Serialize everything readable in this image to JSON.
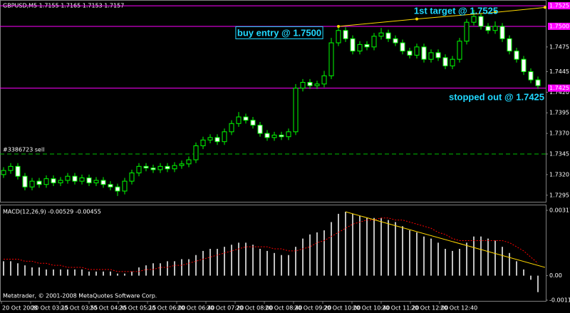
{
  "chart_data": [
    {
      "type": "candlestick",
      "title": "GBPUSD,M5  1.7155 1.7165 1.7153 1.7157",
      "open": [
        1.732,
        1.7325,
        1.733,
        1.7318,
        1.7305,
        1.7312,
        1.7308,
        1.7315,
        1.731,
        1.7313,
        1.7318,
        1.7312,
        1.7316,
        1.731,
        1.7313,
        1.7308,
        1.7305,
        1.73,
        1.7312,
        1.7322,
        1.733,
        1.7328,
        1.7326,
        1.733,
        1.7327,
        1.7331,
        1.7333,
        1.7338,
        1.7355,
        1.7362,
        1.7365,
        1.736,
        1.7372,
        1.7382,
        1.739,
        1.7386,
        1.738,
        1.737,
        1.7365,
        1.7368,
        1.7366,
        1.7372,
        1.7425,
        1.7432,
        1.7428,
        1.743,
        1.744,
        1.748,
        1.7495,
        1.7485,
        1.747,
        1.7478,
        1.7475,
        1.7488,
        1.7492,
        1.7485,
        1.748,
        1.747,
        1.7465,
        1.7475,
        1.746,
        1.7468,
        1.7462,
        1.7452,
        1.746,
        1.7482,
        1.7505,
        1.7512,
        1.75,
        1.7495,
        1.75,
        1.7485,
        1.747,
        1.746,
        1.7445,
        1.7435
      ],
      "high": [
        1.7329,
        1.7334,
        1.7334,
        1.7322,
        1.7316,
        1.7316,
        1.7319,
        1.7319,
        1.7317,
        1.7322,
        1.7322,
        1.732,
        1.732,
        1.7317,
        1.7317,
        1.7312,
        1.7309,
        1.7316,
        1.7326,
        1.7334,
        1.7334,
        1.7332,
        1.7334,
        1.7334,
        1.7335,
        1.7337,
        1.7342,
        1.7359,
        1.7366,
        1.7369,
        1.7369,
        1.7376,
        1.7386,
        1.7396,
        1.7394,
        1.739,
        1.7384,
        1.7374,
        1.7372,
        1.7372,
        1.7376,
        1.743,
        1.7436,
        1.7436,
        1.7434,
        1.7446,
        1.7486,
        1.75,
        1.7499,
        1.7489,
        1.7482,
        1.7482,
        1.7492,
        1.7498,
        1.7496,
        1.7489,
        1.7484,
        1.7474,
        1.7479,
        1.7479,
        1.7472,
        1.7472,
        1.7466,
        1.7464,
        1.7486,
        1.7509,
        1.752,
        1.7516,
        1.7504,
        1.7506,
        1.7504,
        1.7489,
        1.7474,
        1.7464,
        1.7449,
        1.7439
      ],
      "low": [
        1.7316,
        1.7321,
        1.7314,
        1.7301,
        1.7301,
        1.7304,
        1.7304,
        1.7306,
        1.7306,
        1.7309,
        1.7308,
        1.7308,
        1.7306,
        1.7306,
        1.7304,
        1.7301,
        1.7294,
        1.7296,
        1.7308,
        1.7318,
        1.7324,
        1.7322,
        1.7322,
        1.7323,
        1.7323,
        1.7327,
        1.7329,
        1.7334,
        1.7351,
        1.7358,
        1.7356,
        1.7356,
        1.7368,
        1.7378,
        1.7382,
        1.7376,
        1.7366,
        1.7361,
        1.7361,
        1.7362,
        1.7362,
        1.7368,
        1.7421,
        1.7424,
        1.7424,
        1.7426,
        1.7436,
        1.7476,
        1.7481,
        1.7466,
        1.7466,
        1.7471,
        1.7471,
        1.7484,
        1.7481,
        1.7476,
        1.7466,
        1.7461,
        1.7461,
        1.7456,
        1.7456,
        1.7458,
        1.7448,
        1.7448,
        1.7456,
        1.7478,
        1.7501,
        1.7496,
        1.7491,
        1.7491,
        1.7481,
        1.7466,
        1.7456,
        1.7441,
        1.7431,
        1.7424
      ],
      "close": [
        1.7325,
        1.733,
        1.7318,
        1.7305,
        1.7312,
        1.7308,
        1.7315,
        1.731,
        1.7313,
        1.7318,
        1.7312,
        1.7316,
        1.731,
        1.7313,
        1.7308,
        1.7305,
        1.73,
        1.7312,
        1.7322,
        1.733,
        1.7328,
        1.7326,
        1.733,
        1.7327,
        1.7331,
        1.7333,
        1.7338,
        1.7355,
        1.7362,
        1.7365,
        1.736,
        1.7372,
        1.7382,
        1.739,
        1.7386,
        1.738,
        1.737,
        1.7365,
        1.7368,
        1.7366,
        1.7372,
        1.7425,
        1.7432,
        1.7428,
        1.743,
        1.744,
        1.748,
        1.7495,
        1.7485,
        1.747,
        1.7478,
        1.7475,
        1.7488,
        1.7492,
        1.7485,
        1.748,
        1.747,
        1.7465,
        1.7475,
        1.746,
        1.7468,
        1.7462,
        1.7452,
        1.746,
        1.7482,
        1.7505,
        1.7512,
        1.75,
        1.7495,
        1.75,
        1.7485,
        1.747,
        1.746,
        1.7445,
        1.7435,
        1.7428
      ],
      "ylim": [
        1.7287,
        1.7532
      ],
      "yticks": [
        1.7295,
        {
          "value": 1.732,
          "label": "1.7320"
        },
        1.7345,
        {
          "value": 1.737,
          "label": "1.7370"
        },
        1.7395,
        {
          "value": 1.742,
          "label": "1.7420"
        },
        1.7445,
        1.7475
      ],
      "levels": [
        {
          "value": 1.7525,
          "color": "#ff00ff"
        },
        {
          "value": 1.75,
          "label": "1.7500",
          "color": "#ff00ff"
        },
        {
          "value": 1.7425,
          "color": "#ff00ff"
        },
        {
          "value": 1.7345,
          "label": "#3386723 sell",
          "color": "#00c000",
          "dashed": true
        }
      ],
      "trendline": {
        "color": "#ffd700",
        "x": [
          47,
          58,
          69,
          76
        ],
        "y": [
          1.75,
          1.7509,
          1.7517,
          1.7523
        ]
      },
      "annotations": [
        "1st target @ 1.7525",
        "buy entry @ 1.7500",
        "stopped out @ 1.7425"
      ],
      "up_color": "#00ff00",
      "bull_body": "#000000",
      "bear_body": "#ffffff",
      "x_labels": [
        "20 Oct 2008",
        "20 Oct 03:15",
        "20 Oct 03:55",
        "20 Oct 04:35",
        "20 Oct 05:15",
        "20 Oct 06:00",
        "20 Oct 06:40",
        "20 Oct 07:20",
        "20 Oct 08:00",
        "20 Oct 08:40",
        "20 Oct 09:20",
        "20 Oct 10:00",
        "20 Oct 10:40",
        "20 Oct 11:20",
        "20 Oct 12:00",
        "20 Oct 12:40"
      ]
    },
    {
      "type": "macd",
      "title": "MACD(12,26,9) -0.00529 -0.00455",
      "histogram": [
        0.0007,
        0.0007,
        0.0006,
        0.0005,
        0.0004,
        0.0004,
        0.0003,
        0.0003,
        0.0003,
        0.0003,
        0.0003,
        0.0003,
        0.0002,
        0.0002,
        0.0002,
        0.0002,
        0.0001,
        0.0001,
        0.0002,
        0.0004,
        0.0005,
        0.0006,
        0.0006,
        0.0007,
        0.0007,
        0.0008,
        0.0008,
        0.001,
        0.0012,
        0.0013,
        0.0013,
        0.0014,
        0.0015,
        0.0016,
        0.0016,
        0.0015,
        0.0013,
        0.0012,
        0.0011,
        0.001,
        0.001,
        0.0014,
        0.0018,
        0.002,
        0.0021,
        0.0022,
        0.0026,
        0.003,
        0.0031,
        0.003,
        0.0029,
        0.0028,
        0.0028,
        0.0028,
        0.0027,
        0.0026,
        0.0024,
        0.0022,
        0.0021,
        0.0019,
        0.0018,
        0.0016,
        0.0013,
        0.0012,
        0.0013,
        0.0016,
        0.0019,
        0.0019,
        0.0018,
        0.0017,
        0.0014,
        0.0011,
        0.0007,
        0.0003,
        -0.0002,
        -0.0008
      ],
      "signal": [
        0.0008,
        0.0008,
        0.0008,
        0.0007,
        0.0007,
        0.0006,
        0.0006,
        0.0005,
        0.0005,
        0.0004,
        0.0004,
        0.0004,
        0.0003,
        0.0003,
        0.0003,
        0.0003,
        0.0002,
        0.0002,
        0.0002,
        0.0002,
        0.0003,
        0.0003,
        0.0004,
        0.0004,
        0.0005,
        0.0005,
        0.0006,
        0.0007,
        0.0008,
        0.0009,
        0.001,
        0.0011,
        0.0012,
        0.0013,
        0.0014,
        0.0014,
        0.0014,
        0.0014,
        0.0013,
        0.0013,
        0.0012,
        0.0012,
        0.0013,
        0.0014,
        0.0016,
        0.0017,
        0.0019,
        0.0021,
        0.0023,
        0.0025,
        0.0026,
        0.0027,
        0.0027,
        0.0028,
        0.0028,
        0.0027,
        0.0027,
        0.0026,
        0.0025,
        0.0024,
        0.0023,
        0.0021,
        0.002,
        0.0018,
        0.0017,
        0.0017,
        0.0017,
        0.0017,
        0.0017,
        0.0017,
        0.0017,
        0.0016,
        0.0014,
        0.0012,
        0.0009,
        0.0006
      ],
      "ylim": [
        -0.00119,
        0.00317
      ],
      "yticks": [
        0.00317,
        {
          "value": 0,
          "label": "0.00"
        },
        -0.00119
      ],
      "histogram_color": "#c0c0c0",
      "signal_color": "#ff0000",
      "trendline": {
        "color": "#ffd700",
        "x": [
          48,
          76
        ],
        "y": [
          0.0031,
          0.0004
        ]
      },
      "credit": "Metatrader, © 2001-2008 MetaQuotes Software Corp."
    }
  ]
}
